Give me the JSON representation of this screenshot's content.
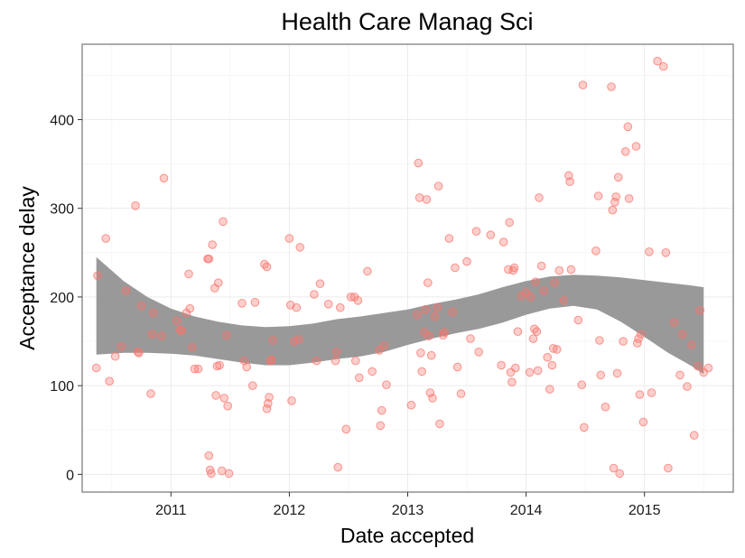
{
  "chart_data": {
    "type": "scatter",
    "title": "Health Care Manag Sci",
    "xlabel": "Date accepted",
    "ylabel": "Acceptance delay",
    "xlim": [
      2010.25,
      2015.75
    ],
    "ylim": [
      -20,
      485
    ],
    "x_ticks": [
      2011,
      2012,
      2013,
      2014,
      2015
    ],
    "x_tick_labels": [
      "2011",
      "2012",
      "2013",
      "2014",
      "2015"
    ],
    "y_ticks": [
      0,
      100,
      200,
      300,
      400
    ],
    "y_tick_labels": [
      "0",
      "100",
      "200",
      "300",
      "400"
    ],
    "grid": true,
    "colors": {
      "points": "#F8766D",
      "band": "#999999",
      "panel_border": "#7f7f7f"
    },
    "points": [
      [
        2010.37,
        120
      ],
      [
        2010.38,
        224
      ],
      [
        2010.45,
        266
      ],
      [
        2010.48,
        105
      ],
      [
        2010.53,
        133
      ],
      [
        2010.58,
        144
      ],
      [
        2010.62,
        207
      ],
      [
        2010.7,
        303
      ],
      [
        2010.72,
        138
      ],
      [
        2010.73,
        137
      ],
      [
        2010.75,
        190
      ],
      [
        2010.83,
        91
      ],
      [
        2010.84,
        158
      ],
      [
        2010.85,
        182
      ],
      [
        2010.92,
        156
      ],
      [
        2010.94,
        334
      ],
      [
        2011.05,
        173
      ],
      [
        2011.08,
        163
      ],
      [
        2011.09,
        162
      ],
      [
        2011.13,
        182
      ],
      [
        2011.15,
        226
      ],
      [
        2011.16,
        187
      ],
      [
        2011.18,
        143
      ],
      [
        2011.2,
        119
      ],
      [
        2011.23,
        119
      ],
      [
        2011.31,
        243
      ],
      [
        2011.32,
        243
      ],
      [
        2011.32,
        21
      ],
      [
        2011.33,
        5
      ],
      [
        2011.34,
        1
      ],
      [
        2011.35,
        259
      ],
      [
        2011.37,
        210
      ],
      [
        2011.38,
        89
      ],
      [
        2011.39,
        122
      ],
      [
        2011.4,
        216
      ],
      [
        2011.41,
        123
      ],
      [
        2011.43,
        4
      ],
      [
        2011.44,
        285
      ],
      [
        2011.45,
        86
      ],
      [
        2011.47,
        157
      ],
      [
        2011.48,
        77
      ],
      [
        2011.49,
        1
      ],
      [
        2011.6,
        193
      ],
      [
        2011.62,
        128
      ],
      [
        2011.64,
        121
      ],
      [
        2011.69,
        100
      ],
      [
        2011.71,
        194
      ],
      [
        2011.79,
        237
      ],
      [
        2011.81,
        234
      ],
      [
        2011.81,
        74
      ],
      [
        2011.82,
        80
      ],
      [
        2011.83,
        87
      ],
      [
        2011.84,
        128
      ],
      [
        2011.85,
        129
      ],
      [
        2011.86,
        151
      ],
      [
        2012.0,
        266
      ],
      [
        2012.01,
        191
      ],
      [
        2012.02,
        83
      ],
      [
        2012.04,
        150
      ],
      [
        2012.06,
        188
      ],
      [
        2012.08,
        152
      ],
      [
        2012.09,
        256
      ],
      [
        2012.21,
        203
      ],
      [
        2012.23,
        128
      ],
      [
        2012.26,
        215
      ],
      [
        2012.33,
        192
      ],
      [
        2012.39,
        128
      ],
      [
        2012.4,
        138
      ],
      [
        2012.41,
        8
      ],
      [
        2012.43,
        188
      ],
      [
        2012.48,
        51
      ],
      [
        2012.52,
        200
      ],
      [
        2012.55,
        200
      ],
      [
        2012.56,
        128
      ],
      [
        2012.58,
        196
      ],
      [
        2012.59,
        109
      ],
      [
        2012.66,
        229
      ],
      [
        2012.7,
        116
      ],
      [
        2012.76,
        140
      ],
      [
        2012.77,
        55
      ],
      [
        2012.78,
        72
      ],
      [
        2012.8,
        145
      ],
      [
        2012.82,
        101
      ],
      [
        2013.03,
        78
      ],
      [
        2013.08,
        180
      ],
      [
        2013.09,
        351
      ],
      [
        2013.1,
        312
      ],
      [
        2013.11,
        137
      ],
      [
        2013.12,
        116
      ],
      [
        2013.14,
        160
      ],
      [
        2013.15,
        186
      ],
      [
        2013.16,
        310
      ],
      [
        2013.17,
        216
      ],
      [
        2013.18,
        156
      ],
      [
        2013.19,
        92
      ],
      [
        2013.2,
        134
      ],
      [
        2013.21,
        86
      ],
      [
        2013.23,
        178
      ],
      [
        2013.25,
        188
      ],
      [
        2013.26,
        325
      ],
      [
        2013.27,
        57
      ],
      [
        2013.3,
        157
      ],
      [
        2013.31,
        160
      ],
      [
        2013.35,
        266
      ],
      [
        2013.38,
        183
      ],
      [
        2013.4,
        233
      ],
      [
        2013.42,
        121
      ],
      [
        2013.45,
        91
      ],
      [
        2013.5,
        240
      ],
      [
        2013.53,
        153
      ],
      [
        2013.58,
        274
      ],
      [
        2013.6,
        138
      ],
      [
        2013.7,
        270
      ],
      [
        2013.79,
        123
      ],
      [
        2013.81,
        262
      ],
      [
        2013.85,
        231
      ],
      [
        2013.86,
        284
      ],
      [
        2013.87,
        115
      ],
      [
        2013.88,
        104
      ],
      [
        2013.89,
        230
      ],
      [
        2013.9,
        233
      ],
      [
        2013.91,
        120
      ],
      [
        2013.93,
        161
      ],
      [
        2013.96,
        201
      ],
      [
        2014.0,
        205
      ],
      [
        2014.03,
        115
      ],
      [
        2014.04,
        200
      ],
      [
        2014.06,
        153
      ],
      [
        2014.07,
        164
      ],
      [
        2014.08,
        217
      ],
      [
        2014.09,
        161
      ],
      [
        2014.1,
        117
      ],
      [
        2014.11,
        312
      ],
      [
        2014.13,
        235
      ],
      [
        2014.15,
        207
      ],
      [
        2014.18,
        132
      ],
      [
        2014.2,
        96
      ],
      [
        2014.22,
        123
      ],
      [
        2014.23,
        142
      ],
      [
        2014.24,
        216
      ],
      [
        2014.26,
        141
      ],
      [
        2014.28,
        230
      ],
      [
        2014.32,
        196
      ],
      [
        2014.36,
        337
      ],
      [
        2014.37,
        330
      ],
      [
        2014.38,
        231
      ],
      [
        2014.44,
        174
      ],
      [
        2014.47,
        101
      ],
      [
        2014.48,
        439
      ],
      [
        2014.49,
        53
      ],
      [
        2014.59,
        252
      ],
      [
        2014.61,
        314
      ],
      [
        2014.62,
        151
      ],
      [
        2014.63,
        112
      ],
      [
        2014.67,
        76
      ],
      [
        2014.72,
        437
      ],
      [
        2014.73,
        298
      ],
      [
        2014.74,
        7
      ],
      [
        2014.75,
        307
      ],
      [
        2014.76,
        313
      ],
      [
        2014.77,
        114
      ],
      [
        2014.78,
        335
      ],
      [
        2014.79,
        1
      ],
      [
        2014.82,
        150
      ],
      [
        2014.84,
        364
      ],
      [
        2014.86,
        392
      ],
      [
        2014.87,
        311
      ],
      [
        2014.93,
        370
      ],
      [
        2014.94,
        148
      ],
      [
        2014.95,
        153
      ],
      [
        2014.96,
        90
      ],
      [
        2014.97,
        158
      ],
      [
        2014.99,
        59
      ],
      [
        2015.04,
        251
      ],
      [
        2015.06,
        92
      ],
      [
        2015.11,
        466
      ],
      [
        2015.16,
        460
      ],
      [
        2015.18,
        250
      ],
      [
        2015.2,
        7
      ],
      [
        2015.25,
        171
      ],
      [
        2015.3,
        112
      ],
      [
        2015.32,
        158
      ],
      [
        2015.36,
        99
      ],
      [
        2015.4,
        146
      ],
      [
        2015.42,
        44
      ],
      [
        2015.45,
        122
      ],
      [
        2015.47,
        185
      ],
      [
        2015.5,
        115
      ],
      [
        2015.54,
        120
      ]
    ],
    "smooth_band": [
      {
        "x": 2010.37,
        "lower": 135,
        "upper": 245
      },
      {
        "x": 2010.6,
        "lower": 137,
        "upper": 218
      },
      {
        "x": 2010.8,
        "lower": 137,
        "upper": 200
      },
      {
        "x": 2011.0,
        "lower": 136,
        "upper": 187
      },
      {
        "x": 2011.2,
        "lower": 134,
        "upper": 178
      },
      {
        "x": 2011.4,
        "lower": 130,
        "upper": 172
      },
      {
        "x": 2011.6,
        "lower": 126,
        "upper": 168
      },
      {
        "x": 2011.8,
        "lower": 123,
        "upper": 166
      },
      {
        "x": 2012.0,
        "lower": 123,
        "upper": 167
      },
      {
        "x": 2012.2,
        "lower": 126,
        "upper": 170
      },
      {
        "x": 2012.4,
        "lower": 130,
        "upper": 175
      },
      {
        "x": 2012.6,
        "lower": 133,
        "upper": 178
      },
      {
        "x": 2012.8,
        "lower": 138,
        "upper": 182
      },
      {
        "x": 2013.0,
        "lower": 146,
        "upper": 186
      },
      {
        "x": 2013.2,
        "lower": 153,
        "upper": 192
      },
      {
        "x": 2013.4,
        "lower": 159,
        "upper": 197
      },
      {
        "x": 2013.6,
        "lower": 164,
        "upper": 203
      },
      {
        "x": 2013.8,
        "lower": 171,
        "upper": 211
      },
      {
        "x": 2014.0,
        "lower": 180,
        "upper": 218
      },
      {
        "x": 2014.2,
        "lower": 187,
        "upper": 223
      },
      {
        "x": 2014.4,
        "lower": 190,
        "upper": 225
      },
      {
        "x": 2014.6,
        "lower": 186,
        "upper": 224
      },
      {
        "x": 2014.8,
        "lower": 172,
        "upper": 222
      },
      {
        "x": 2015.0,
        "lower": 155,
        "upper": 219
      },
      {
        "x": 2015.2,
        "lower": 137,
        "upper": 216
      },
      {
        "x": 2015.4,
        "lower": 122,
        "upper": 213
      },
      {
        "x": 2015.5,
        "lower": 113,
        "upper": 211
      }
    ]
  }
}
